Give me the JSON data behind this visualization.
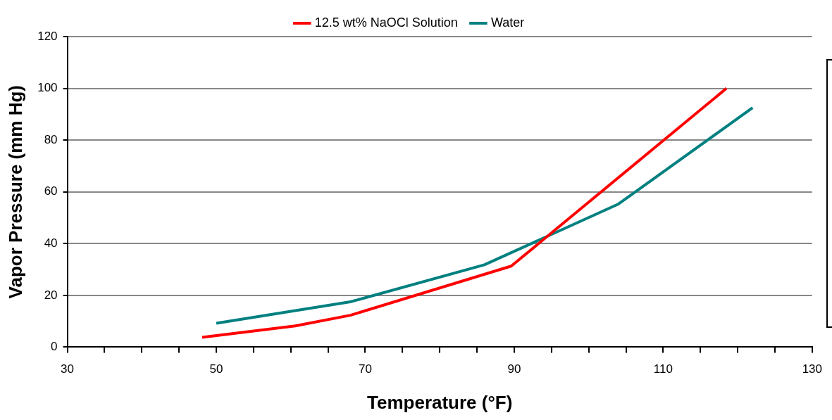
{
  "chart_data": {
    "type": "line",
    "xlabel": "Temperature (°F)",
    "ylabel": "Vapor Pressure (mm Hg)",
    "series": [
      {
        "name": "12.5 wt% NaOCl Solution",
        "color": "#ff0000",
        "x": [
          48.1,
          60.6,
          68,
          89.6,
          118.5
        ],
        "values": [
          3.8,
          8.2,
          12.3,
          31.3,
          100
        ]
      },
      {
        "name": "Water",
        "color": "#008080",
        "x": [
          50,
          68,
          86,
          104,
          122
        ],
        "values": [
          9.2,
          17.5,
          31.8,
          55.3,
          92.5
        ]
      }
    ],
    "xlim": [
      30,
      130
    ],
    "xticks": [
      30,
      {
        "value": 35,
        "label": null
      },
      {
        "value": 40,
        "label": null
      },
      {
        "value": 45,
        "label": null
      },
      50,
      {
        "value": 55,
        "label": null
      },
      {
        "value": 60,
        "label": null
      },
      {
        "value": 65,
        "label": null
      },
      70,
      {
        "value": 75,
        "label": null
      },
      {
        "value": 80,
        "label": null
      },
      {
        "value": 85,
        "label": null
      },
      90,
      {
        "value": 95,
        "label": null
      },
      {
        "value": 100,
        "label": null
      },
      {
        "value": 105,
        "label": null
      },
      110,
      {
        "value": 115,
        "label": null
      },
      {
        "value": 120,
        "label": null
      },
      {
        "value": 125,
        "label": null
      },
      130
    ],
    "ylim": [
      0,
      120
    ],
    "yticks": [
      0,
      20,
      40,
      60,
      80,
      100,
      120
    ],
    "grid": "y",
    "legend": "top",
    "marker": "none",
    "line_style": "solid"
  }
}
